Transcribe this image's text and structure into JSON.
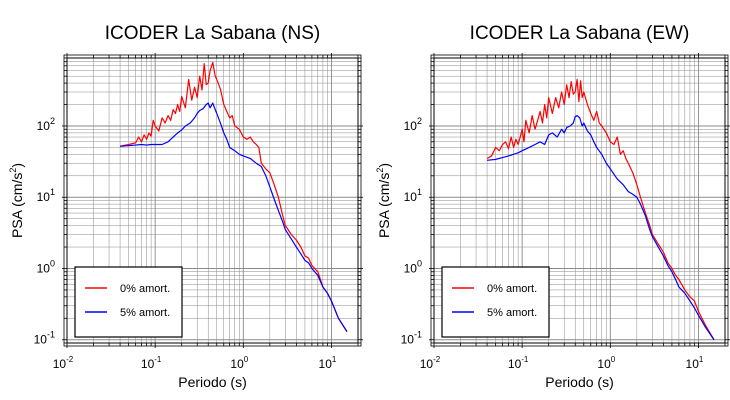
{
  "chart_data": [
    {
      "type": "line",
      "title": "ICODER La Sabana (NS)",
      "xlabel": "Periodo (s)",
      "ylabel": "PSA (cm/s",
      "ylabel_sup": "2",
      "ylabel_close": ")",
      "x_scale": "log",
      "y_scale": "log",
      "xlim": [
        0.01,
        20
      ],
      "ylim": [
        0.09,
        900
      ],
      "grid": true,
      "legend_position": "bottom-left",
      "x_ticks": [
        {
          "base": "10",
          "exp": "-2",
          "value": 0.01
        },
        {
          "base": "10",
          "exp": "-1",
          "value": 0.1
        },
        {
          "base": "10",
          "exp": "0",
          "value": 1
        },
        {
          "base": "10",
          "exp": "1",
          "value": 10
        }
      ],
      "y_ticks": [
        {
          "base": "10",
          "exp": "-1",
          "value": 0.1
        },
        {
          "base": "10",
          "exp": "0",
          "value": 1
        },
        {
          "base": "10",
          "exp": "1",
          "value": 10
        },
        {
          "base": "10",
          "exp": "2",
          "value": 100
        }
      ],
      "series": [
        {
          "name": "0% amort.",
          "color": "#ff0000",
          "x": [
            0.04,
            0.05,
            0.06,
            0.065,
            0.07,
            0.075,
            0.08,
            0.085,
            0.09,
            0.095,
            0.1,
            0.11,
            0.12,
            0.13,
            0.14,
            0.15,
            0.16,
            0.17,
            0.18,
            0.19,
            0.2,
            0.22,
            0.24,
            0.26,
            0.28,
            0.3,
            0.32,
            0.34,
            0.36,
            0.38,
            0.4,
            0.42,
            0.45,
            0.48,
            0.5,
            0.55,
            0.6,
            0.65,
            0.7,
            0.75,
            0.8,
            0.9,
            1.0,
            1.1,
            1.2,
            1.3,
            1.4,
            1.5,
            1.6,
            1.8,
            2.0,
            2.2,
            2.5,
            2.8,
            3.0,
            3.5,
            4.0,
            4.5,
            5.0,
            5.5,
            6.0,
            7.0,
            8.0,
            9.0,
            10,
            12,
            15
          ],
          "y": [
            52,
            55,
            58,
            70,
            60,
            75,
            65,
            80,
            72,
            120,
            100,
            85,
            130,
            110,
            140,
            120,
            170,
            150,
            200,
            160,
            260,
            180,
            450,
            230,
            350,
            250,
            500,
            320,
            750,
            380,
            400,
            600,
            780,
            500,
            450,
            330,
            200,
            160,
            130,
            140,
            100,
            90,
            70,
            65,
            70,
            60,
            55,
            50,
            30,
            25,
            22,
            16,
            10,
            5.5,
            4,
            3,
            2.5,
            2,
            1.5,
            1.4,
            1.1,
            0.9,
            0.55,
            0.45,
            0.35,
            0.2,
            0.13
          ]
        },
        {
          "name": "5% amort.",
          "color": "#0000ff",
          "x": [
            0.04,
            0.05,
            0.06,
            0.07,
            0.08,
            0.09,
            0.1,
            0.12,
            0.14,
            0.16,
            0.18,
            0.2,
            0.22,
            0.25,
            0.28,
            0.3,
            0.32,
            0.35,
            0.38,
            0.4,
            0.42,
            0.45,
            0.48,
            0.5,
            0.55,
            0.6,
            0.65,
            0.7,
            0.8,
            0.9,
            1.0,
            1.2,
            1.4,
            1.6,
            1.8,
            2.0,
            2.2,
            2.5,
            2.8,
            3.0,
            3.5,
            4.0,
            4.5,
            5.0,
            5.5,
            6.0,
            7.0,
            8.0,
            9.0,
            10,
            12,
            15
          ],
          "y": [
            52,
            53,
            54,
            55,
            54,
            55,
            55,
            55,
            60,
            70,
            80,
            88,
            100,
            110,
            130,
            150,
            165,
            175,
            200,
            210,
            180,
            210,
            170,
            150,
            110,
            80,
            65,
            50,
            45,
            40,
            38,
            35,
            30,
            27,
            20,
            14,
            10,
            6.5,
            4.5,
            3.5,
            2.6,
            2.0,
            1.6,
            1.3,
            1.2,
            1.0,
            0.8,
            0.55,
            0.45,
            0.35,
            0.2,
            0.13
          ]
        }
      ]
    },
    {
      "type": "line",
      "title": "ICODER La Sabana (EW)",
      "xlabel": "Periodo (s)",
      "ylabel": "PSA (cm/s",
      "ylabel_sup": "2",
      "ylabel_close": ")",
      "x_scale": "log",
      "y_scale": "log",
      "xlim": [
        0.01,
        20
      ],
      "ylim": [
        0.09,
        900
      ],
      "grid": true,
      "legend_position": "bottom-left",
      "x_ticks": [
        {
          "base": "10",
          "exp": "-2",
          "value": 0.01
        },
        {
          "base": "10",
          "exp": "-1",
          "value": 0.1
        },
        {
          "base": "10",
          "exp": "0",
          "value": 1
        },
        {
          "base": "10",
          "exp": "1",
          "value": 10
        }
      ],
      "y_ticks": [
        {
          "base": "10",
          "exp": "-1",
          "value": 0.1
        },
        {
          "base": "10",
          "exp": "0",
          "value": 1
        },
        {
          "base": "10",
          "exp": "1",
          "value": 10
        },
        {
          "base": "10",
          "exp": "2",
          "value": 100
        }
      ],
      "series": [
        {
          "name": "0% amort.",
          "color": "#ff0000",
          "x": [
            0.04,
            0.045,
            0.05,
            0.055,
            0.06,
            0.065,
            0.07,
            0.075,
            0.08,
            0.085,
            0.09,
            0.095,
            0.1,
            0.105,
            0.11,
            0.12,
            0.13,
            0.14,
            0.15,
            0.16,
            0.17,
            0.18,
            0.19,
            0.2,
            0.22,
            0.24,
            0.26,
            0.28,
            0.3,
            0.32,
            0.34,
            0.36,
            0.38,
            0.4,
            0.42,
            0.44,
            0.46,
            0.48,
            0.5,
            0.55,
            0.6,
            0.65,
            0.7,
            0.75,
            0.8,
            0.9,
            1.0,
            1.1,
            1.2,
            1.3,
            1.4,
            1.5,
            1.6,
            1.8,
            2.0,
            2.2,
            2.5,
            2.8,
            3.0,
            3.5,
            4.0,
            4.5,
            5.0,
            5.5,
            6.0,
            7.0,
            8.0,
            9.0,
            10,
            12,
            15
          ],
          "y": [
            35,
            38,
            50,
            45,
            55,
            60,
            48,
            70,
            50,
            65,
            55,
            70,
            90,
            60,
            120,
            80,
            140,
            90,
            120,
            160,
            110,
            200,
            130,
            250,
            150,
            250,
            180,
            300,
            200,
            380,
            250,
            420,
            280,
            300,
            450,
            220,
            430,
            250,
            300,
            200,
            150,
            120,
            160,
            110,
            100,
            80,
            60,
            55,
            70,
            40,
            45,
            35,
            30,
            22,
            15,
            10,
            6.0,
            4.0,
            3.0,
            2.2,
            1.7,
            1.2,
            1.0,
            0.8,
            0.7,
            0.5,
            0.4,
            0.35,
            0.25,
            0.16,
            0.1
          ]
        },
        {
          "name": "5% amort.",
          "color": "#0000ff",
          "x": [
            0.04,
            0.05,
            0.06,
            0.07,
            0.08,
            0.09,
            0.1,
            0.12,
            0.14,
            0.16,
            0.18,
            0.2,
            0.22,
            0.25,
            0.28,
            0.3,
            0.32,
            0.35,
            0.38,
            0.4,
            0.42,
            0.45,
            0.48,
            0.5,
            0.55,
            0.6,
            0.65,
            0.7,
            0.8,
            0.9,
            1.0,
            1.2,
            1.4,
            1.6,
            1.8,
            2.0,
            2.2,
            2.5,
            2.8,
            3.0,
            3.5,
            4.0,
            4.5,
            5.0,
            5.5,
            6.0,
            7.0,
            8.0,
            9.0,
            10,
            12,
            15
          ],
          "y": [
            33,
            34,
            36,
            38,
            40,
            42,
            45,
            50,
            55,
            60,
            55,
            75,
            80,
            70,
            90,
            80,
            95,
            100,
            110,
            135,
            140,
            130,
            100,
            110,
            85,
            75,
            60,
            50,
            40,
            30,
            25,
            18,
            15,
            12,
            11,
            10,
            8.0,
            5.5,
            3.5,
            2.8,
            2.0,
            1.5,
            1.1,
            0.9,
            0.7,
            0.55,
            0.45,
            0.35,
            0.28,
            0.22,
            0.15,
            0.1
          ]
        }
      ]
    }
  ]
}
